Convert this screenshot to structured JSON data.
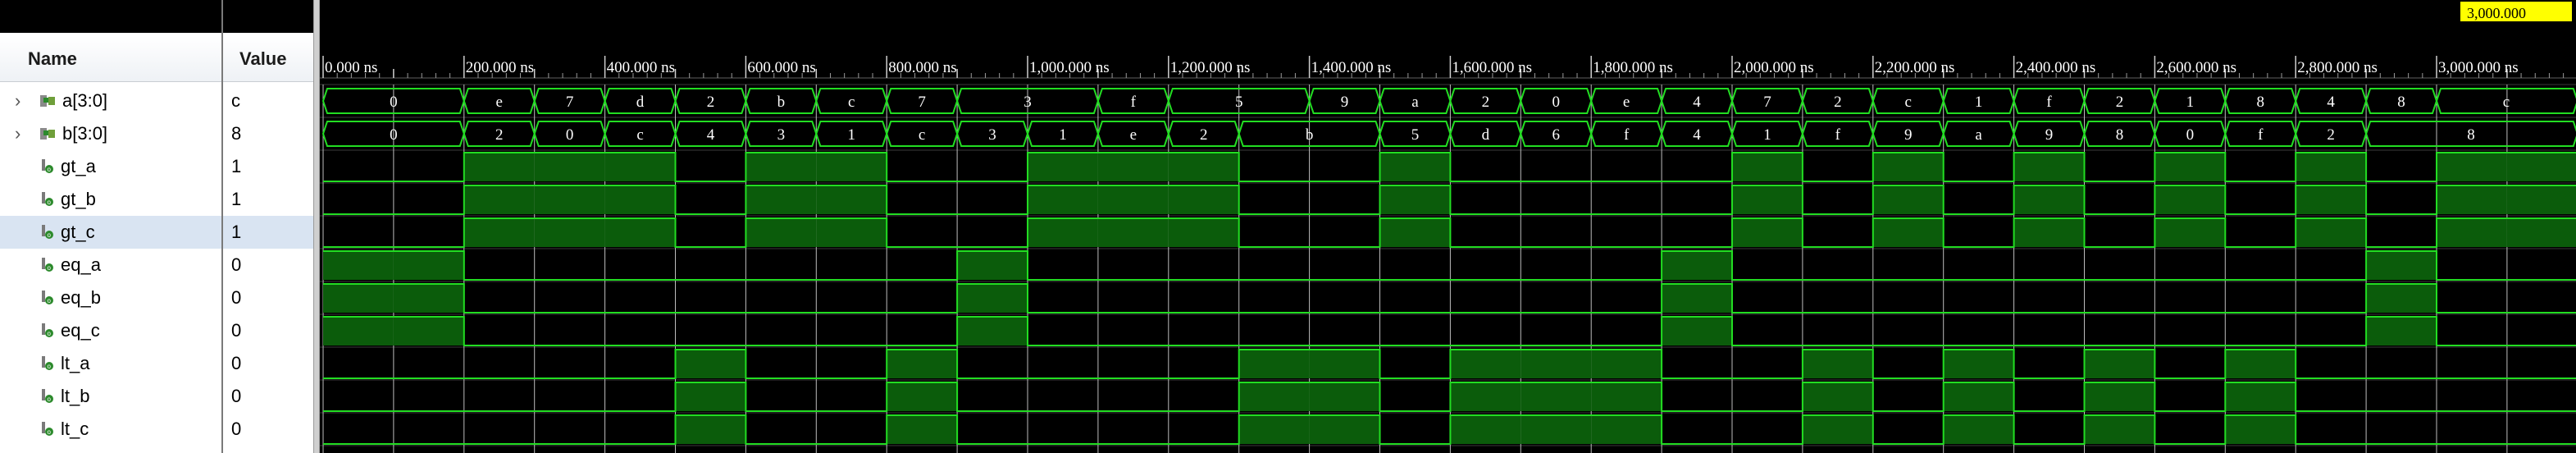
{
  "columns": {
    "name": "Name",
    "value": "Value"
  },
  "timeline": {
    "cursor_label": "3,000.000",
    "tick_labels": [
      "0.000 ns",
      "200.000 ns",
      "400.000 ns",
      "600.000 ns",
      "800.000 ns",
      "1,000.000 ns",
      "1,200.000 ns",
      "1,400.000 ns",
      "1,600.000 ns",
      "1,800.000 ns",
      "2,000.000 ns",
      "2,200.000 ns",
      "2,400.000 ns",
      "2,600.000 ns",
      "2,800.000 ns",
      "3,000.000 ns"
    ]
  },
  "signals": [
    {
      "name": "a[3:0]",
      "value": "c",
      "kind": "bus",
      "selected": false
    },
    {
      "name": "b[3:0]",
      "value": "8",
      "kind": "bus",
      "selected": false
    },
    {
      "name": "gt_a",
      "value": "1",
      "kind": "bit",
      "selected": false
    },
    {
      "name": "gt_b",
      "value": "1",
      "kind": "bit",
      "selected": false
    },
    {
      "name": "gt_c",
      "value": "1",
      "kind": "bit",
      "selected": true
    },
    {
      "name": "eq_a",
      "value": "0",
      "kind": "bit",
      "selected": false
    },
    {
      "name": "eq_b",
      "value": "0",
      "kind": "bit",
      "selected": false
    },
    {
      "name": "eq_c",
      "value": "0",
      "kind": "bit",
      "selected": false
    },
    {
      "name": "lt_a",
      "value": "0",
      "kind": "bit",
      "selected": false
    },
    {
      "name": "lt_b",
      "value": "0",
      "kind": "bit",
      "selected": false
    },
    {
      "name": "lt_c",
      "value": "0",
      "kind": "bit",
      "selected": false
    }
  ],
  "waves": {
    "a": [
      "0",
      "0",
      "e",
      "7",
      "d",
      "2",
      "b",
      "c",
      "7",
      "3",
      "3",
      "f",
      "5",
      "5",
      "9",
      "a",
      "2",
      "0",
      "e",
      "4",
      "7",
      "2",
      "c",
      "1",
      "f",
      "2",
      "1",
      "8",
      "4",
      "8",
      "c",
      "c"
    ],
    "b": [
      "0",
      "0",
      "2",
      "0",
      "c",
      "4",
      "3",
      "1",
      "c",
      "3",
      "1",
      "e",
      "2",
      "b",
      "b",
      "5",
      "d",
      "6",
      "f",
      "4",
      "1",
      "f",
      "9",
      "a",
      "9",
      "8",
      "0",
      "f",
      "2",
      "8",
      "8",
      "8"
    ],
    "gt": [
      0,
      0,
      1,
      1,
      1,
      0,
      1,
      1,
      0,
      0,
      1,
      1,
      1,
      0,
      0,
      1,
      0,
      0,
      0,
      0,
      1,
      0,
      1,
      0,
      1,
      0,
      1,
      0,
      1,
      0,
      1,
      1
    ],
    "eq": [
      1,
      1,
      0,
      0,
      0,
      0,
      0,
      0,
      0,
      1,
      0,
      0,
      0,
      0,
      0,
      0,
      0,
      0,
      0,
      1,
      0,
      0,
      0,
      0,
      0,
      0,
      0,
      0,
      0,
      1,
      0,
      0
    ],
    "lt": [
      0,
      0,
      0,
      0,
      0,
      1,
      0,
      0,
      1,
      0,
      0,
      0,
      0,
      1,
      1,
      0,
      1,
      1,
      1,
      0,
      0,
      1,
      0,
      1,
      0,
      1,
      0,
      1,
      0,
      0,
      0,
      0
    ]
  },
  "colors": {
    "background": "#000000",
    "wave_line": "#22dd22",
    "wave_fill": "#0b5c0b",
    "bus_text": "#ffffff",
    "grid": "#3a3a3a",
    "ruler_text": "#ffffff",
    "cursor_fill": "#ffff00",
    "name_text": "#000000",
    "selected_row": "#d9e4f2"
  }
}
